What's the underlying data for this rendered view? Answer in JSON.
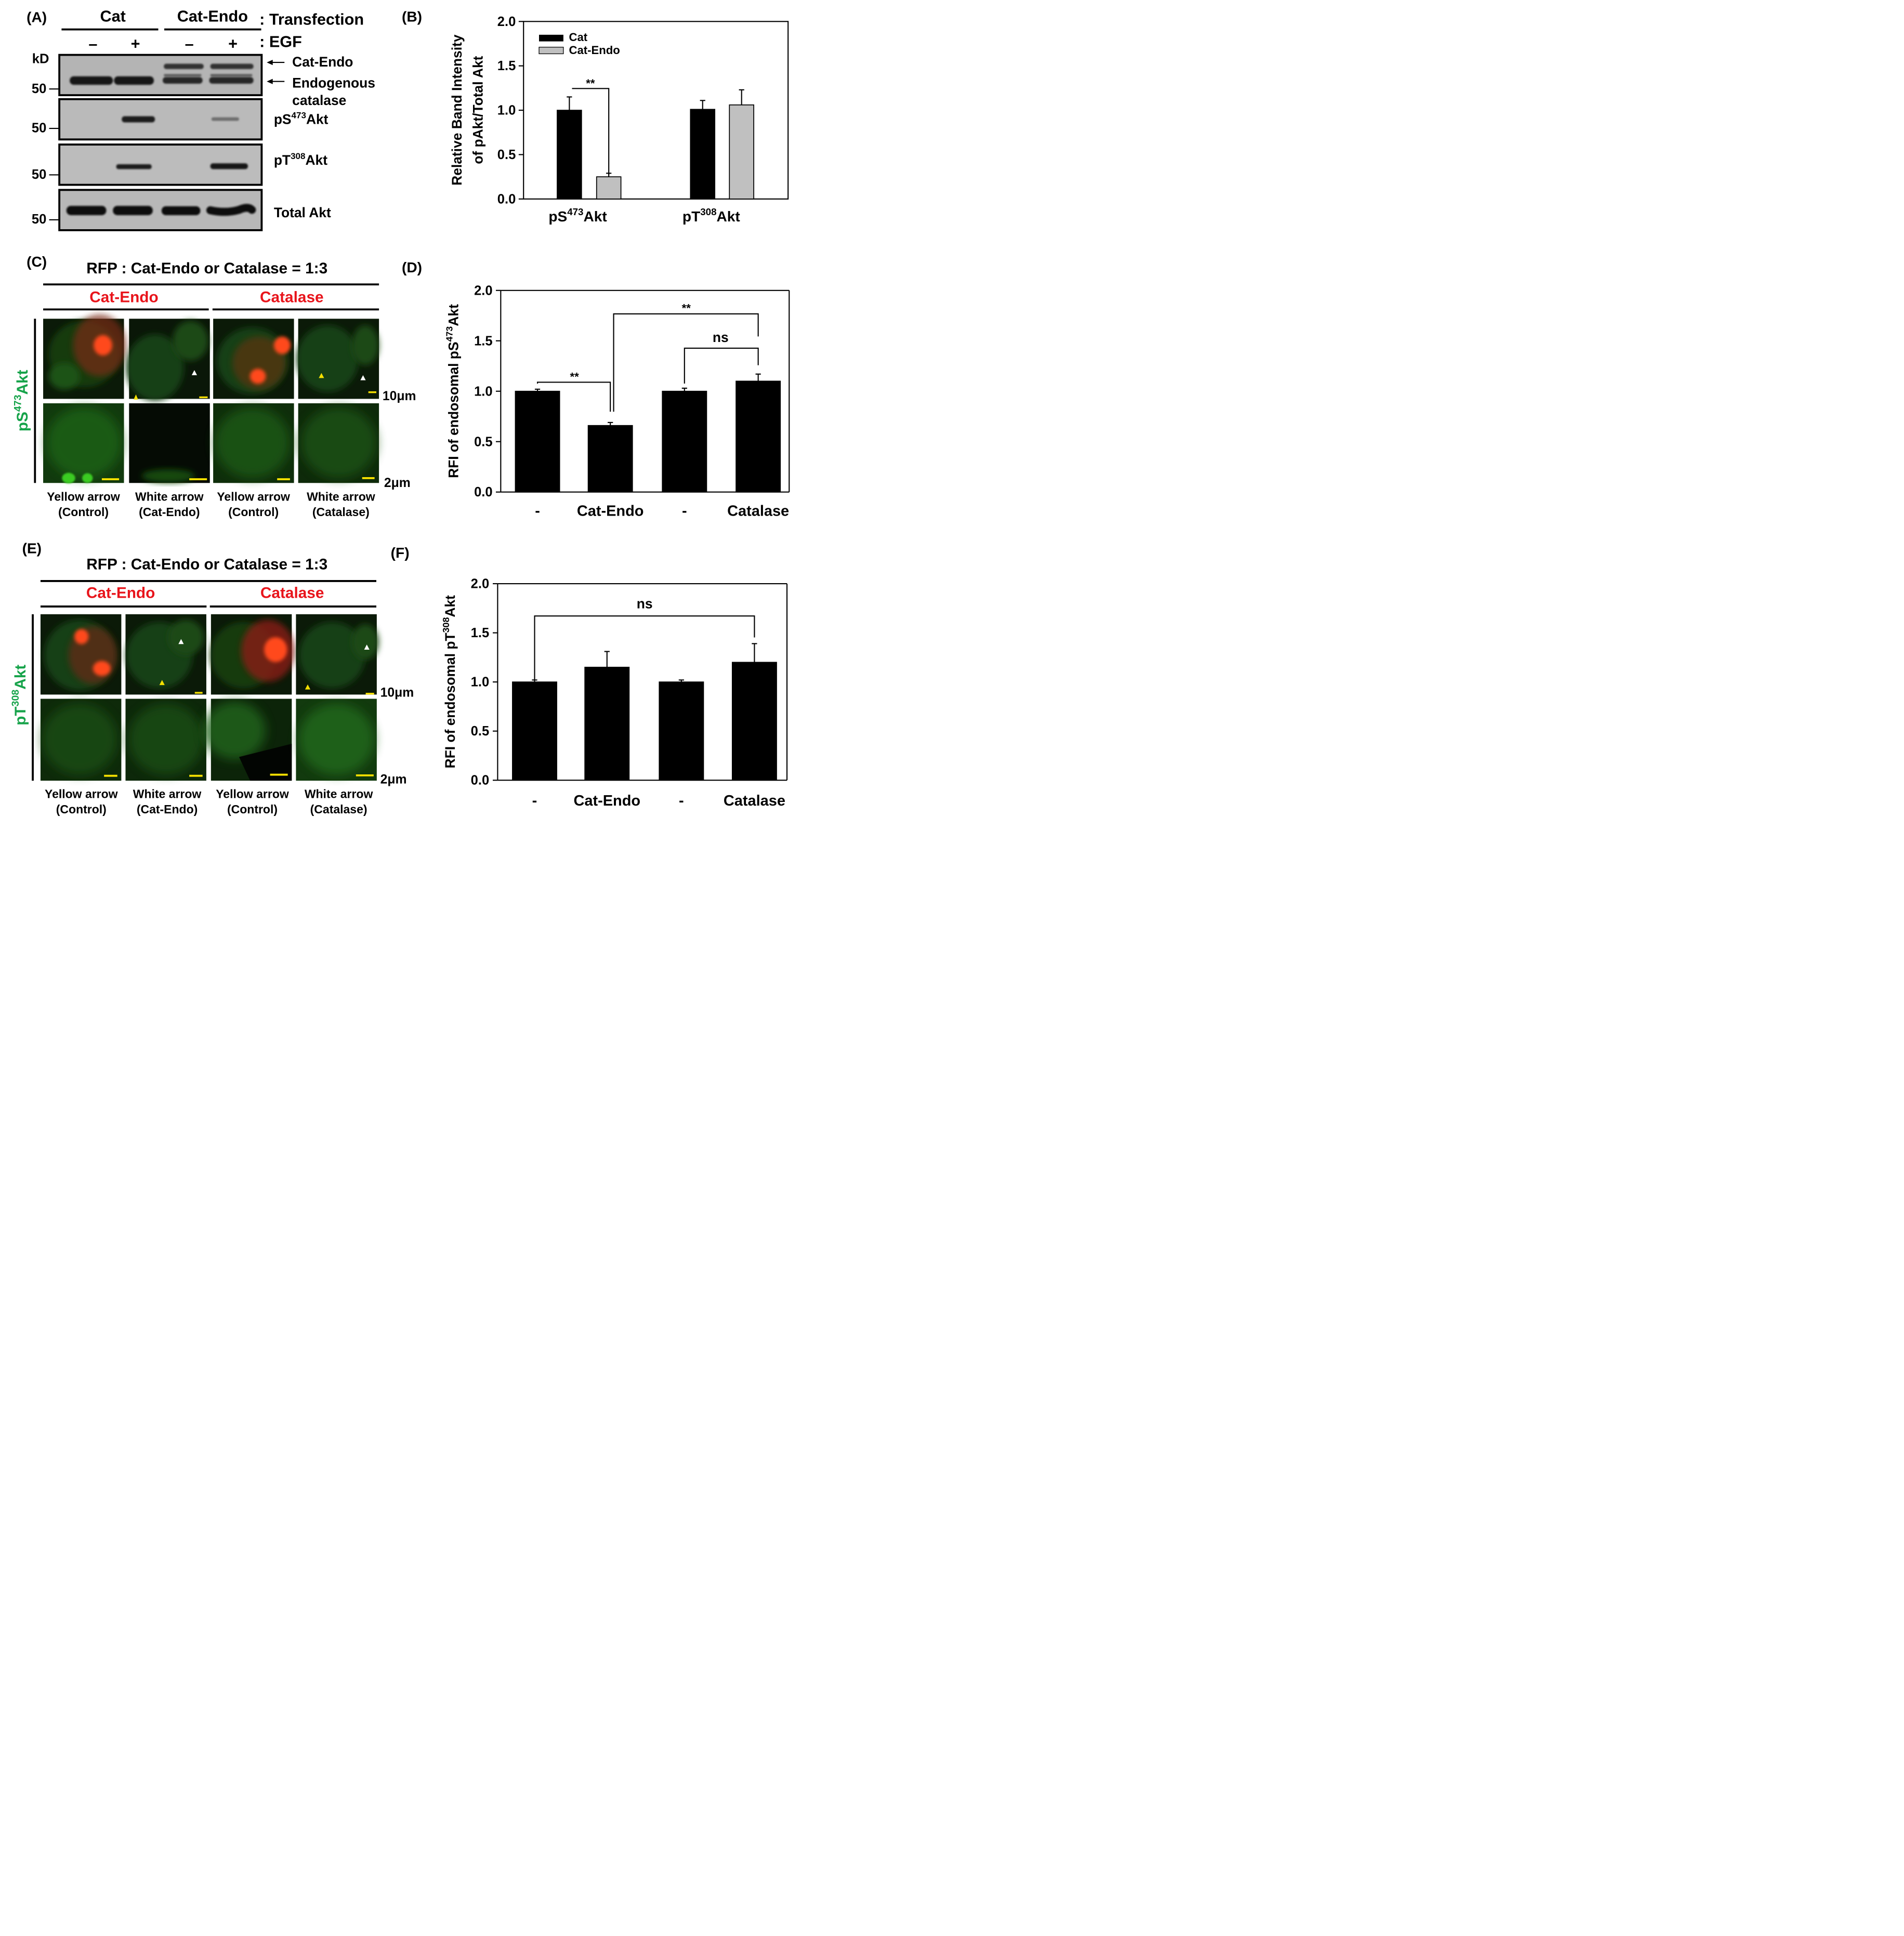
{
  "panels": {
    "A": {
      "label": "(A)",
      "transfection_groups": [
        "Cat",
        "Cat-Endo"
      ],
      "transfection_label": ": Transfection",
      "egf_signs": [
        "–",
        "+",
        "–",
        "+"
      ],
      "egf_label": ": EGF",
      "kd_label": "kD",
      "marker": "50",
      "band_labels": {
        "cat_endo": "Cat-Endo",
        "endogenous_1": "Endogenous",
        "endogenous_2": "catalase",
        "ps_prefix": "pS",
        "ps_sup": "473",
        "ps_suffix": "Akt",
        "pt_prefix": "pT",
        "pt_sup": "308",
        "pt_suffix": "Akt",
        "total": "Total Akt"
      }
    },
    "B": {
      "label": "(B)"
    },
    "C": {
      "label": "(C)",
      "ratio_title": "RFP : Cat-Endo or Catalase = 1:3",
      "group_left": "Cat-Endo",
      "group_right": "Catalase",
      "side_prefix": "pS",
      "side_sup": "473",
      "side_suffix": "Akt",
      "scale_top": "10μm",
      "scale_bottom": "2μm",
      "captions": [
        [
          "Yellow arrow",
          "(Control)"
        ],
        [
          "White arrow",
          "(Cat-Endo)"
        ],
        [
          "Yellow arrow",
          "(Control)"
        ],
        [
          "White arrow",
          "(Catalase)"
        ]
      ]
    },
    "D": {
      "label": "(D)"
    },
    "E": {
      "label": "(E)",
      "ratio_title": "RFP : Cat-Endo or Catalase = 1:3",
      "group_left": "Cat-Endo",
      "group_right": "Catalase",
      "side_prefix": "pT",
      "side_sup": "308",
      "side_suffix": "Akt",
      "scale_top": "10μm",
      "scale_bottom": "2μm",
      "captions": [
        [
          "Yellow arrow",
          "(Control)"
        ],
        [
          "White arrow",
          "(Cat-Endo)"
        ],
        [
          "Yellow arrow",
          "(Control)"
        ],
        [
          "White arrow",
          "(Catalase)"
        ]
      ]
    },
    "F": {
      "label": "(F)"
    }
  },
  "colors": {
    "red_label": "#e8141b",
    "green_label": "#16a34a",
    "black_bar": "#000000",
    "gray_bar": "#c0c0c0"
  },
  "chart_data": [
    {
      "id": "B",
      "type": "bar",
      "ylabel_line1": "Relative Band Intensity",
      "ylabel_line2": "of pAkt/Total Akt",
      "categories": [
        {
          "prefix": "pS",
          "sup": "473",
          "suffix": "Akt"
        },
        {
          "prefix": "pT",
          "sup": "308",
          "suffix": "Akt"
        }
      ],
      "series": [
        {
          "name": "Cat",
          "values": [
            1.0,
            1.01
          ],
          "errors": [
            0.15,
            0.1
          ]
        },
        {
          "name": "Cat-Endo",
          "values": [
            0.25,
            1.06
          ],
          "errors": [
            0.04,
            0.17
          ]
        }
      ],
      "ylim": [
        0,
        2.0
      ],
      "yticks": [
        "0.0",
        "0.5",
        "1.0",
        "1.5",
        "2.0"
      ],
      "legend": "top-left",
      "significance": [
        {
          "text": "**"
        }
      ]
    },
    {
      "id": "D",
      "type": "bar",
      "ylabel": {
        "prefix": "RFI of endosomal pS",
        "sup": "473",
        "suffix": "Akt"
      },
      "categories": [
        "-",
        "Cat-Endo",
        "-",
        "Catalase"
      ],
      "values": [
        1.0,
        0.66,
        1.0,
        1.1
      ],
      "errors": [
        0.02,
        0.03,
        0.03,
        0.07
      ],
      "ylim": [
        0,
        2.0
      ],
      "yticks": [
        "0.0",
        "0.5",
        "1.0",
        "1.5",
        "2.0"
      ],
      "significance": [
        {
          "text": "**"
        },
        {
          "text": "**"
        },
        {
          "text": "ns"
        }
      ]
    },
    {
      "id": "F",
      "type": "bar",
      "ylabel": {
        "prefix": "RFI of endosomal pT",
        "sup": "308",
        "suffix": "Akt"
      },
      "categories": [
        "-",
        "Cat-Endo",
        "-",
        "Catalase"
      ],
      "values": [
        1.0,
        1.15,
        1.0,
        1.2
      ],
      "errors": [
        0.02,
        0.16,
        0.02,
        0.19
      ],
      "ylim": [
        0,
        2.0
      ],
      "yticks": [
        "0.0",
        "0.5",
        "1.0",
        "1.5",
        "2.0"
      ],
      "significance": [
        {
          "text": "ns"
        }
      ]
    }
  ]
}
